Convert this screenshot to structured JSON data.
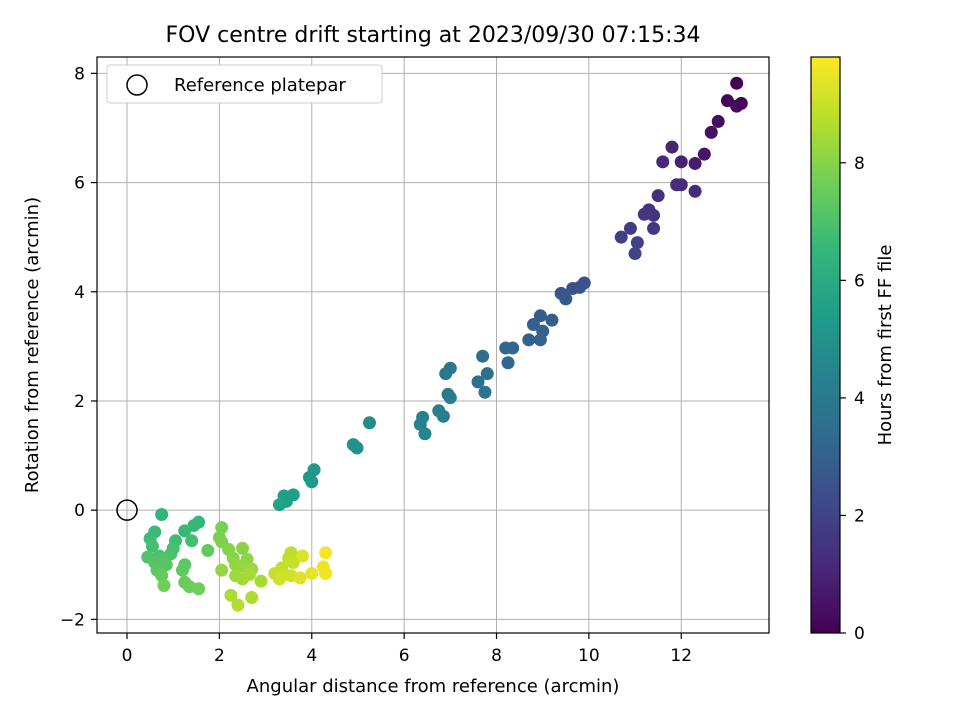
{
  "chart_data": {
    "type": "scatter",
    "title": "FOV centre drift starting at 2023/09/30 07:15:34",
    "xlabel": "Angular distance from reference (arcmin)",
    "ylabel": "Rotation from reference (arcmin)",
    "xlim": [
      -0.65,
      13.9
    ],
    "ylim": [
      -2.25,
      8.3
    ],
    "xticks": [
      0,
      2,
      4,
      6,
      8,
      10,
      12
    ],
    "yticks": [
      -2,
      0,
      2,
      4,
      6,
      8
    ],
    "grid": true,
    "legend": {
      "position": "top-left",
      "entries": [
        "Reference platepar"
      ]
    },
    "reference_point": {
      "x": 0,
      "y": 0
    },
    "colorbar": {
      "label": "Hours from first FF file",
      "range": [
        0,
        9.8
      ],
      "ticks": [
        0,
        2,
        4,
        6,
        8
      ],
      "colormap": "viridis"
    },
    "points": [
      {
        "x": 13.2,
        "y": 7.82,
        "t": 0.05
      },
      {
        "x": 13.3,
        "y": 7.45,
        "t": 0.1
      },
      {
        "x": 13.0,
        "y": 7.5,
        "t": 0.15
      },
      {
        "x": 13.2,
        "y": 7.4,
        "t": 0.2
      },
      {
        "x": 12.8,
        "y": 7.12,
        "t": 0.35
      },
      {
        "x": 12.65,
        "y": 6.92,
        "t": 0.45
      },
      {
        "x": 12.5,
        "y": 6.52,
        "t": 0.6
      },
      {
        "x": 12.3,
        "y": 6.35,
        "t": 0.75
      },
      {
        "x": 12.0,
        "y": 6.38,
        "t": 0.9
      },
      {
        "x": 11.8,
        "y": 6.65,
        "t": 1.0
      },
      {
        "x": 11.6,
        "y": 6.38,
        "t": 1.1
      },
      {
        "x": 12.3,
        "y": 5.84,
        "t": 1.15
      },
      {
        "x": 12.0,
        "y": 5.96,
        "t": 1.2
      },
      {
        "x": 11.9,
        "y": 5.96,
        "t": 1.25
      },
      {
        "x": 11.5,
        "y": 5.76,
        "t": 1.35
      },
      {
        "x": 11.3,
        "y": 5.5,
        "t": 1.45
      },
      {
        "x": 11.4,
        "y": 5.4,
        "t": 1.5
      },
      {
        "x": 11.2,
        "y": 5.42,
        "t": 1.55
      },
      {
        "x": 11.4,
        "y": 5.16,
        "t": 1.65
      },
      {
        "x": 10.9,
        "y": 5.16,
        "t": 1.75
      },
      {
        "x": 10.7,
        "y": 5.0,
        "t": 1.85
      },
      {
        "x": 11.05,
        "y": 4.9,
        "t": 1.95
      },
      {
        "x": 11.0,
        "y": 4.7,
        "t": 2.0
      },
      {
        "x": 9.9,
        "y": 4.16,
        "t": 2.45
      },
      {
        "x": 9.8,
        "y": 4.08,
        "t": 2.5
      },
      {
        "x": 9.65,
        "y": 4.06,
        "t": 2.55
      },
      {
        "x": 9.4,
        "y": 3.97,
        "t": 2.65
      },
      {
        "x": 9.5,
        "y": 3.87,
        "t": 2.7
      },
      {
        "x": 8.95,
        "y": 3.56,
        "t": 2.85
      },
      {
        "x": 9.2,
        "y": 3.48,
        "t": 2.9
      },
      {
        "x": 8.8,
        "y": 3.4,
        "t": 2.95
      },
      {
        "x": 9.0,
        "y": 3.28,
        "t": 3.0
      },
      {
        "x": 8.7,
        "y": 3.12,
        "t": 3.05
      },
      {
        "x": 8.95,
        "y": 3.12,
        "t": 3.1
      },
      {
        "x": 8.35,
        "y": 2.97,
        "t": 3.2
      },
      {
        "x": 8.2,
        "y": 2.97,
        "t": 3.25
      },
      {
        "x": 8.25,
        "y": 2.7,
        "t": 3.3
      },
      {
        "x": 7.7,
        "y": 2.82,
        "t": 3.5
      },
      {
        "x": 7.8,
        "y": 2.5,
        "t": 3.6
      },
      {
        "x": 7.6,
        "y": 2.35,
        "t": 3.65
      },
      {
        "x": 7.75,
        "y": 2.16,
        "t": 3.7
      },
      {
        "x": 7.0,
        "y": 2.6,
        "t": 3.9
      },
      {
        "x": 6.9,
        "y": 2.5,
        "t": 3.95
      },
      {
        "x": 6.95,
        "y": 2.12,
        "t": 4.0
      },
      {
        "x": 7.0,
        "y": 2.06,
        "t": 4.05
      },
      {
        "x": 6.75,
        "y": 1.82,
        "t": 4.2
      },
      {
        "x": 6.85,
        "y": 1.72,
        "t": 4.25
      },
      {
        "x": 6.4,
        "y": 1.7,
        "t": 4.35
      },
      {
        "x": 6.35,
        "y": 1.57,
        "t": 4.4
      },
      {
        "x": 6.45,
        "y": 1.4,
        "t": 4.45
      },
      {
        "x": 5.25,
        "y": 1.6,
        "t": 4.8
      },
      {
        "x": 4.9,
        "y": 1.2,
        "t": 4.9
      },
      {
        "x": 4.98,
        "y": 1.14,
        "t": 4.95
      },
      {
        "x": 4.05,
        "y": 0.74,
        "t": 5.2
      },
      {
        "x": 3.95,
        "y": 0.6,
        "t": 5.25
      },
      {
        "x": 4.0,
        "y": 0.52,
        "t": 5.3
      },
      {
        "x": 3.6,
        "y": 0.28,
        "t": 5.45
      },
      {
        "x": 3.4,
        "y": 0.26,
        "t": 5.5
      },
      {
        "x": 3.45,
        "y": 0.16,
        "t": 5.55
      },
      {
        "x": 3.3,
        "y": 0.1,
        "t": 5.6
      },
      {
        "x": 0.75,
        "y": -0.08,
        "t": 6.4
      },
      {
        "x": 1.55,
        "y": -0.22,
        "t": 6.5
      },
      {
        "x": 1.45,
        "y": -0.28,
        "t": 6.55
      },
      {
        "x": 1.25,
        "y": -0.38,
        "t": 6.6
      },
      {
        "x": 0.6,
        "y": -0.4,
        "t": 6.65
      },
      {
        "x": 0.5,
        "y": -0.52,
        "t": 6.7
      },
      {
        "x": 1.05,
        "y": -0.56,
        "t": 6.75
      },
      {
        "x": 1.4,
        "y": -0.56,
        "t": 6.8
      },
      {
        "x": 0.55,
        "y": -0.66,
        "t": 6.85
      },
      {
        "x": 1.0,
        "y": -0.7,
        "t": 6.9
      },
      {
        "x": 0.95,
        "y": -0.8,
        "t": 6.95
      },
      {
        "x": 0.7,
        "y": -0.84,
        "t": 7.0
      },
      {
        "x": 0.45,
        "y": -0.86,
        "t": 7.05
      },
      {
        "x": 0.8,
        "y": -0.9,
        "t": 7.1
      },
      {
        "x": 0.6,
        "y": -0.96,
        "t": 7.15
      },
      {
        "x": 0.85,
        "y": -1.0,
        "t": 7.2
      },
      {
        "x": 0.65,
        "y": -1.1,
        "t": 7.25
      },
      {
        "x": 1.25,
        "y": -1.0,
        "t": 7.3
      },
      {
        "x": 1.2,
        "y": -1.1,
        "t": 7.35
      },
      {
        "x": 1.75,
        "y": -0.74,
        "t": 7.4
      },
      {
        "x": 0.75,
        "y": -1.2,
        "t": 7.45
      },
      {
        "x": 1.25,
        "y": -1.32,
        "t": 7.5
      },
      {
        "x": 1.35,
        "y": -1.4,
        "t": 7.55
      },
      {
        "x": 1.55,
        "y": -1.44,
        "t": 7.6
      },
      {
        "x": 0.8,
        "y": -1.38,
        "t": 7.65
      },
      {
        "x": 2.05,
        "y": -0.32,
        "t": 7.75
      },
      {
        "x": 2.0,
        "y": -0.5,
        "t": 7.8
      },
      {
        "x": 2.05,
        "y": -0.58,
        "t": 7.85
      },
      {
        "x": 2.2,
        "y": -0.72,
        "t": 7.95
      },
      {
        "x": 2.3,
        "y": -0.88,
        "t": 8.0
      },
      {
        "x": 2.5,
        "y": -0.7,
        "t": 8.05
      },
      {
        "x": 2.6,
        "y": -0.9,
        "t": 8.1
      },
      {
        "x": 2.35,
        "y": -1.0,
        "t": 8.15
      },
      {
        "x": 2.05,
        "y": -1.1,
        "t": 8.2
      },
      {
        "x": 2.5,
        "y": -1.02,
        "t": 8.25
      },
      {
        "x": 2.7,
        "y": -1.08,
        "t": 8.3
      },
      {
        "x": 2.35,
        "y": -1.2,
        "t": 8.35
      },
      {
        "x": 2.5,
        "y": -1.26,
        "t": 8.4
      },
      {
        "x": 2.65,
        "y": -1.18,
        "t": 8.45
      },
      {
        "x": 2.9,
        "y": -1.3,
        "t": 8.5
      },
      {
        "x": 2.25,
        "y": -1.56,
        "t": 8.55
      },
      {
        "x": 2.7,
        "y": -1.6,
        "t": 8.6
      },
      {
        "x": 2.4,
        "y": -1.74,
        "t": 8.65
      },
      {
        "x": 3.55,
        "y": -0.78,
        "t": 8.8
      },
      {
        "x": 3.5,
        "y": -0.88,
        "t": 8.85
      },
      {
        "x": 3.35,
        "y": -1.06,
        "t": 8.9
      },
      {
        "x": 3.6,
        "y": -0.96,
        "t": 8.95
      },
      {
        "x": 3.2,
        "y": -1.16,
        "t": 9.0
      },
      {
        "x": 3.4,
        "y": -1.18,
        "t": 9.05
      },
      {
        "x": 3.55,
        "y": -1.2,
        "t": 9.1
      },
      {
        "x": 3.3,
        "y": -1.26,
        "t": 9.15
      },
      {
        "x": 3.8,
        "y": -0.84,
        "t": 9.3
      },
      {
        "x": 3.75,
        "y": -1.24,
        "t": 9.35
      },
      {
        "x": 4.0,
        "y": -1.16,
        "t": 9.45
      },
      {
        "x": 4.25,
        "y": -1.04,
        "t": 9.55
      },
      {
        "x": 4.3,
        "y": -1.16,
        "t": 9.6
      },
      {
        "x": 4.3,
        "y": -0.78,
        "t": 9.7
      }
    ]
  },
  "colors": {
    "reference_marker_stroke": "#000000",
    "grid": "#b0b0b0"
  }
}
